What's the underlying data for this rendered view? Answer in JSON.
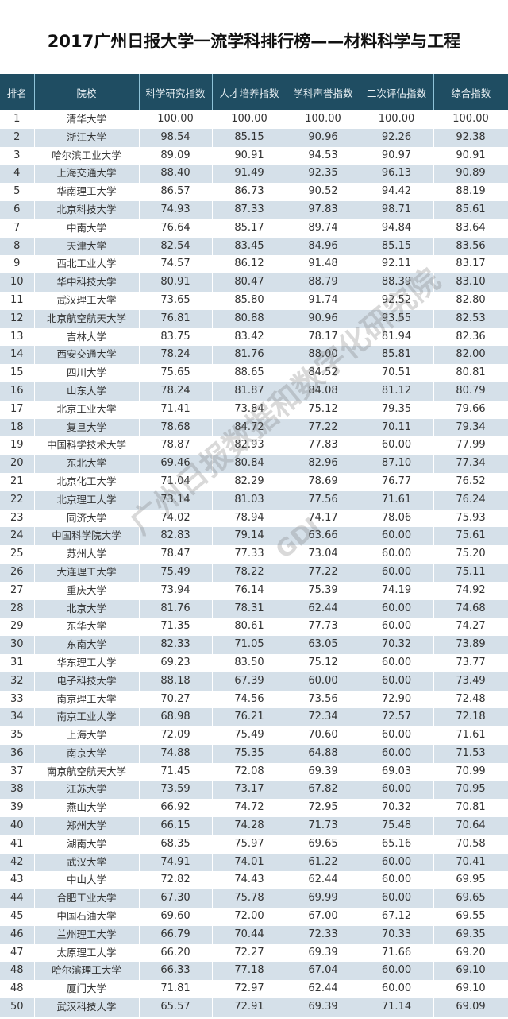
{
  "title": "2017广州日报大学一流学科排行榜——材料科学与工程",
  "watermark": {
    "text": "广州日报数据和数字化研究院",
    "logo": "GDI"
  },
  "colors": {
    "header_bg": "#1f4d62",
    "alt_row_bg": "#d5e0e9"
  },
  "table": {
    "headers": [
      "排名",
      "院校",
      "科学研究指数",
      "人才培养指数",
      "学科声誉指数",
      "二次评估指数",
      "综合指数"
    ],
    "rows": [
      [
        "1",
        "清华大学",
        "100.00",
        "100.00",
        "100.00",
        "100.00",
        "100.00"
      ],
      [
        "2",
        "浙江大学",
        "98.54",
        "85.15",
        "90.96",
        "92.26",
        "92.38"
      ],
      [
        "3",
        "哈尔滨工业大学",
        "89.09",
        "90.91",
        "94.53",
        "90.97",
        "90.91"
      ],
      [
        "4",
        "上海交通大学",
        "88.40",
        "91.49",
        "92.35",
        "96.13",
        "90.89"
      ],
      [
        "5",
        "华南理工大学",
        "86.57",
        "86.73",
        "90.52",
        "94.42",
        "88.19"
      ],
      [
        "6",
        "北京科技大学",
        "74.93",
        "87.33",
        "97.83",
        "98.71",
        "85.61"
      ],
      [
        "7",
        "中南大学",
        "76.64",
        "85.17",
        "89.74",
        "94.84",
        "83.64"
      ],
      [
        "8",
        "天津大学",
        "82.54",
        "83.45",
        "84.96",
        "85.15",
        "83.56"
      ],
      [
        "9",
        "西北工业大学",
        "74.57",
        "86.12",
        "91.48",
        "92.11",
        "83.17"
      ],
      [
        "10",
        "华中科技大学",
        "80.91",
        "80.47",
        "88.79",
        "88.39",
        "83.10"
      ],
      [
        "11",
        "武汉理工大学",
        "73.65",
        "85.80",
        "91.74",
        "92.52",
        "82.80"
      ],
      [
        "12",
        "北京航空航天大学",
        "76.81",
        "80.88",
        "90.96",
        "93.55",
        "82.53"
      ],
      [
        "13",
        "吉林大学",
        "83.75",
        "83.42",
        "78.17",
        "81.94",
        "82.36"
      ],
      [
        "14",
        "西安交通大学",
        "78.24",
        "81.76",
        "88.00",
        "85.81",
        "82.00"
      ],
      [
        "15",
        "四川大学",
        "75.65",
        "88.65",
        "84.52",
        "70.51",
        "80.81"
      ],
      [
        "16",
        "山东大学",
        "78.24",
        "81.87",
        "84.08",
        "81.12",
        "80.79"
      ],
      [
        "17",
        "北京工业大学",
        "71.41",
        "73.84",
        "75.12",
        "79.35",
        "79.66"
      ],
      [
        "18",
        "复旦大学",
        "78.68",
        "84.72",
        "77.22",
        "70.11",
        "79.34"
      ],
      [
        "19",
        "中国科学技术大学",
        "78.87",
        "82.93",
        "77.83",
        "60.00",
        "77.99"
      ],
      [
        "20",
        "东北大学",
        "69.46",
        "80.84",
        "82.96",
        "87.10",
        "77.34"
      ],
      [
        "21",
        "北京化工大学",
        "71.04",
        "82.29",
        "78.69",
        "76.77",
        "76.52"
      ],
      [
        "22",
        "北京理工大学",
        "73.14",
        "81.03",
        "77.56",
        "71.61",
        "76.24"
      ],
      [
        "23",
        "同济大学",
        "74.02",
        "78.94",
        "74.17",
        "78.06",
        "75.93"
      ],
      [
        "24",
        "中国科学院大学",
        "82.83",
        "79.14",
        "63.66",
        "60.00",
        "75.61"
      ],
      [
        "25",
        "苏州大学",
        "78.47",
        "77.33",
        "73.04",
        "60.00",
        "75.20"
      ],
      [
        "26",
        "大连理工大学",
        "75.49",
        "78.22",
        "77.22",
        "60.00",
        "75.11"
      ],
      [
        "27",
        "重庆大学",
        "73.94",
        "76.14",
        "75.39",
        "74.19",
        "74.92"
      ],
      [
        "28",
        "北京大学",
        "81.76",
        "78.31",
        "62.44",
        "60.00",
        "74.68"
      ],
      [
        "29",
        "东华大学",
        "71.35",
        "80.61",
        "77.73",
        "60.00",
        "74.27"
      ],
      [
        "30",
        "东南大学",
        "82.33",
        "71.05",
        "63.05",
        "70.32",
        "73.89"
      ],
      [
        "31",
        "华东理工大学",
        "69.23",
        "83.50",
        "75.12",
        "60.00",
        "73.77"
      ],
      [
        "32",
        "电子科技大学",
        "88.18",
        "67.39",
        "60.00",
        "60.00",
        "73.49"
      ],
      [
        "33",
        "南京理工大学",
        "70.27",
        "74.56",
        "73.56",
        "72.90",
        "72.48"
      ],
      [
        "34",
        "南京工业大学",
        "68.98",
        "76.21",
        "72.34",
        "72.57",
        "72.18"
      ],
      [
        "35",
        "上海大学",
        "72.09",
        "75.49",
        "70.60",
        "60.00",
        "71.61"
      ],
      [
        "36",
        "南京大学",
        "74.88",
        "75.35",
        "64.88",
        "60.00",
        "71.53"
      ],
      [
        "37",
        "南京航空航天大学",
        "71.45",
        "72.08",
        "69.39",
        "69.03",
        "70.99"
      ],
      [
        "38",
        "江苏大学",
        "73.59",
        "73.17",
        "67.82",
        "60.00",
        "70.95"
      ],
      [
        "39",
        "燕山大学",
        "66.92",
        "74.72",
        "72.95",
        "70.32",
        "70.81"
      ],
      [
        "40",
        "郑州大学",
        "66.15",
        "74.28",
        "71.73",
        "75.48",
        "70.64"
      ],
      [
        "41",
        "湖南大学",
        "68.35",
        "75.97",
        "69.65",
        "65.16",
        "70.58"
      ],
      [
        "42",
        "武汉大学",
        "74.91",
        "74.01",
        "61.22",
        "60.00",
        "70.41"
      ],
      [
        "43",
        "中山大学",
        "72.82",
        "74.43",
        "62.44",
        "60.00",
        "69.95"
      ],
      [
        "44",
        "合肥工业大学",
        "67.30",
        "75.78",
        "69.99",
        "60.00",
        "69.65"
      ],
      [
        "45",
        "中国石油大学",
        "69.60",
        "72.00",
        "67.00",
        "67.12",
        "69.55"
      ],
      [
        "46",
        "兰州理工大学",
        "66.79",
        "70.44",
        "72.33",
        "70.33",
        "69.35"
      ],
      [
        "47",
        "太原理工大学",
        "66.20",
        "72.27",
        "69.39",
        "71.66",
        "69.20"
      ],
      [
        "48",
        "哈尔滨理工大学",
        "66.33",
        "77.18",
        "67.04",
        "60.00",
        "69.10"
      ],
      [
        "48",
        "厦门大学",
        "71.81",
        "72.97",
        "62.44",
        "60.00",
        "69.10"
      ],
      [
        "50",
        "武汉科技大学",
        "65.57",
        "72.91",
        "69.39",
        "71.14",
        "69.09"
      ]
    ]
  }
}
